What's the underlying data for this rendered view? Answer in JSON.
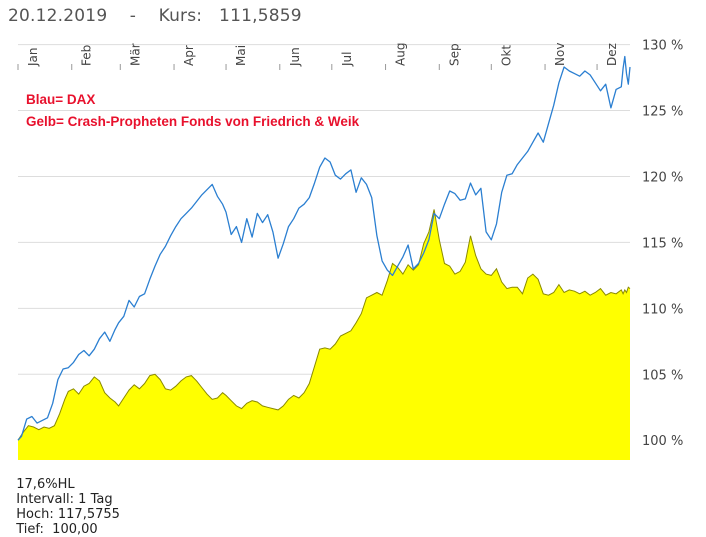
{
  "header": {
    "date": "20.12.2019",
    "separator": "-",
    "price_label": "Kurs:",
    "price_value": "111,5859"
  },
  "annotations": {
    "line1": "Blau= DAX",
    "line2": "Gelb= Crash-Propheten Fonds von Friedrich & Weik",
    "color": "#e8112d"
  },
  "footer": {
    "range": "17,6%HL",
    "interval": "Intervall: 1 Tag",
    "high": "Hoch: 117,5755",
    "low": "Tief:  100,00"
  },
  "colors": {
    "dax_line": "#2b7fd1",
    "fund_fill": "#ffff00",
    "fund_line": "#8a8a00",
    "grid": "#dddddd",
    "tick_text": "#444444"
  },
  "chart_data": {
    "type": "line",
    "x_axis": {
      "labels": [
        "Jan",
        "Feb",
        "Mär",
        "Apr",
        "Mai",
        "Jun",
        "Jul",
        "Aug",
        "Sep",
        "Okt",
        "Nov",
        "Dez"
      ],
      "range": [
        "2019-01-01",
        "2019-12-20"
      ]
    },
    "y_axis": {
      "ticks": [
        100,
        105,
        110,
        115,
        120,
        125,
        130
      ],
      "tick_labels": [
        "100 %",
        "105 %",
        "110 %",
        "115 %",
        "120 %",
        "125 %",
        "130 %"
      ],
      "ylim": [
        98.5,
        130.5
      ]
    },
    "grid": true,
    "series": [
      {
        "name": "DAX",
        "style": "line",
        "points": [
          [
            1,
            100.0
          ],
          [
            3,
            100.3
          ],
          [
            6,
            101.6
          ],
          [
            9,
            101.8
          ],
          [
            12,
            101.3
          ],
          [
            15,
            101.5
          ],
          [
            18,
            101.7
          ],
          [
            21,
            102.8
          ],
          [
            24,
            104.6
          ],
          [
            27,
            105.4
          ],
          [
            30,
            105.5
          ],
          [
            33,
            105.9
          ],
          [
            36,
            106.5
          ],
          [
            39,
            106.8
          ],
          [
            42,
            106.4
          ],
          [
            45,
            106.9
          ],
          [
            48,
            107.7
          ],
          [
            51,
            108.2
          ],
          [
            54,
            107.5
          ],
          [
            57,
            108.4
          ],
          [
            59,
            108.9
          ],
          [
            62,
            109.4
          ],
          [
            65,
            110.6
          ],
          [
            68,
            110.1
          ],
          [
            71,
            110.9
          ],
          [
            74,
            111.1
          ],
          [
            77,
            112.2
          ],
          [
            80,
            113.2
          ],
          [
            83,
            114.1
          ],
          [
            86,
            114.7
          ],
          [
            89,
            115.5
          ],
          [
            92,
            116.2
          ],
          [
            95,
            116.8
          ],
          [
            98,
            117.2
          ],
          [
            101,
            117.6
          ],
          [
            104,
            118.1
          ],
          [
            107,
            118.6
          ],
          [
            110,
            119.0
          ],
          [
            113,
            119.4
          ],
          [
            116,
            118.5
          ],
          [
            119,
            117.9
          ],
          [
            121,
            117.3
          ],
          [
            124,
            115.6
          ],
          [
            127,
            116.2
          ],
          [
            130,
            115.0
          ],
          [
            133,
            116.8
          ],
          [
            136,
            115.4
          ],
          [
            139,
            117.2
          ],
          [
            142,
            116.5
          ],
          [
            145,
            117.1
          ],
          [
            148,
            115.8
          ],
          [
            151,
            113.8
          ],
          [
            154,
            114.9
          ],
          [
            157,
            116.2
          ],
          [
            160,
            116.8
          ],
          [
            163,
            117.6
          ],
          [
            166,
            117.9
          ],
          [
            169,
            118.4
          ],
          [
            172,
            119.5
          ],
          [
            175,
            120.7
          ],
          [
            178,
            121.4
          ],
          [
            181,
            121.1
          ],
          [
            184,
            120.1
          ],
          [
            187,
            119.8
          ],
          [
            190,
            120.2
          ],
          [
            193,
            120.5
          ],
          [
            196,
            118.8
          ],
          [
            199,
            119.9
          ],
          [
            202,
            119.4
          ],
          [
            205,
            118.4
          ],
          [
            208,
            115.5
          ],
          [
            211,
            113.6
          ],
          [
            214,
            112.9
          ],
          [
            217,
            112.5
          ],
          [
            220,
            113.2
          ],
          [
            223,
            113.9
          ],
          [
            226,
            114.8
          ],
          [
            229,
            113.0
          ],
          [
            232,
            113.4
          ],
          [
            235,
            114.2
          ],
          [
            238,
            115.2
          ],
          [
            241,
            117.2
          ],
          [
            244,
            116.8
          ],
          [
            247,
            117.9
          ],
          [
            250,
            118.9
          ],
          [
            253,
            118.7
          ],
          [
            256,
            118.2
          ],
          [
            259,
            118.3
          ],
          [
            262,
            119.5
          ],
          [
            265,
            118.6
          ],
          [
            268,
            119.1
          ],
          [
            271,
            115.8
          ],
          [
            274,
            115.2
          ],
          [
            277,
            116.4
          ],
          [
            280,
            118.8
          ],
          [
            283,
            120.1
          ],
          [
            286,
            120.2
          ],
          [
            289,
            120.9
          ],
          [
            292,
            121.4
          ],
          [
            295,
            121.9
          ],
          [
            298,
            122.6
          ],
          [
            301,
            123.3
          ],
          [
            304,
            122.6
          ],
          [
            307,
            124.0
          ],
          [
            310,
            125.4
          ],
          [
            313,
            127.1
          ],
          [
            316,
            128.3
          ],
          [
            319,
            128.0
          ],
          [
            322,
            127.8
          ],
          [
            325,
            127.6
          ],
          [
            328,
            128.0
          ],
          [
            331,
            127.7
          ],
          [
            334,
            127.1
          ],
          [
            337,
            126.5
          ],
          [
            340,
            127.0
          ],
          [
            343,
            125.2
          ],
          [
            346,
            126.6
          ],
          [
            349,
            126.8
          ],
          [
            350,
            128.2
          ],
          [
            351,
            129.1
          ],
          [
            352,
            127.8
          ],
          [
            353,
            127.0
          ],
          [
            354,
            128.3
          ]
        ]
      },
      {
        "name": "Crash-Propheten Fonds von Friedrich & Weik",
        "style": "area",
        "points": [
          [
            1,
            100.0
          ],
          [
            4,
            100.6
          ],
          [
            7,
            101.1
          ],
          [
            10,
            101.0
          ],
          [
            13,
            100.8
          ],
          [
            16,
            101.0
          ],
          [
            19,
            100.9
          ],
          [
            22,
            101.1
          ],
          [
            25,
            102.0
          ],
          [
            28,
            103.1
          ],
          [
            30,
            103.7
          ],
          [
            33,
            103.9
          ],
          [
            36,
            103.5
          ],
          [
            39,
            104.1
          ],
          [
            42,
            104.3
          ],
          [
            45,
            104.8
          ],
          [
            48,
            104.5
          ],
          [
            51,
            103.6
          ],
          [
            54,
            103.2
          ],
          [
            57,
            102.9
          ],
          [
            59,
            102.6
          ],
          [
            62,
            103.2
          ],
          [
            65,
            103.8
          ],
          [
            68,
            104.2
          ],
          [
            71,
            103.9
          ],
          [
            74,
            104.3
          ],
          [
            77,
            104.9
          ],
          [
            80,
            105.0
          ],
          [
            83,
            104.6
          ],
          [
            86,
            103.9
          ],
          [
            89,
            103.8
          ],
          [
            92,
            104.1
          ],
          [
            95,
            104.5
          ],
          [
            98,
            104.8
          ],
          [
            101,
            104.9
          ],
          [
            104,
            104.5
          ],
          [
            107,
            104.0
          ],
          [
            110,
            103.5
          ],
          [
            113,
            103.1
          ],
          [
            116,
            103.2
          ],
          [
            119,
            103.6
          ],
          [
            121,
            103.4
          ],
          [
            124,
            103.0
          ],
          [
            127,
            102.6
          ],
          [
            130,
            102.4
          ],
          [
            133,
            102.8
          ],
          [
            136,
            103.0
          ],
          [
            139,
            102.9
          ],
          [
            142,
            102.6
          ],
          [
            145,
            102.5
          ],
          [
            148,
            102.4
          ],
          [
            151,
            102.3
          ],
          [
            154,
            102.6
          ],
          [
            157,
            103.1
          ],
          [
            160,
            103.4
          ],
          [
            163,
            103.2
          ],
          [
            166,
            103.6
          ],
          [
            169,
            104.3
          ],
          [
            172,
            105.6
          ],
          [
            175,
            106.9
          ],
          [
            178,
            107.0
          ],
          [
            181,
            106.9
          ],
          [
            184,
            107.3
          ],
          [
            187,
            107.9
          ],
          [
            190,
            108.1
          ],
          [
            193,
            108.3
          ],
          [
            196,
            108.9
          ],
          [
            199,
            109.6
          ],
          [
            202,
            110.8
          ],
          [
            205,
            111.0
          ],
          [
            208,
            111.2
          ],
          [
            211,
            111.0
          ],
          [
            214,
            112.1
          ],
          [
            217,
            113.4
          ],
          [
            220,
            113.1
          ],
          [
            223,
            112.6
          ],
          [
            226,
            113.3
          ],
          [
            229,
            112.9
          ],
          [
            232,
            113.3
          ],
          [
            235,
            114.9
          ],
          [
            238,
            115.8
          ],
          [
            241,
            117.5
          ],
          [
            244,
            115.2
          ],
          [
            247,
            113.4
          ],
          [
            250,
            113.2
          ],
          [
            253,
            112.6
          ],
          [
            256,
            112.8
          ],
          [
            259,
            113.5
          ],
          [
            262,
            115.5
          ],
          [
            265,
            114.0
          ],
          [
            268,
            113.0
          ],
          [
            271,
            112.6
          ],
          [
            274,
            112.5
          ],
          [
            277,
            113.0
          ],
          [
            280,
            112.0
          ],
          [
            283,
            111.5
          ],
          [
            286,
            111.6
          ],
          [
            289,
            111.6
          ],
          [
            292,
            111.1
          ],
          [
            295,
            112.3
          ],
          [
            298,
            112.6
          ],
          [
            301,
            112.2
          ],
          [
            304,
            111.1
          ],
          [
            307,
            111.0
          ],
          [
            310,
            111.2
          ],
          [
            313,
            111.8
          ],
          [
            316,
            111.2
          ],
          [
            319,
            111.4
          ],
          [
            322,
            111.3
          ],
          [
            325,
            111.1
          ],
          [
            328,
            111.3
          ],
          [
            331,
            111.0
          ],
          [
            334,
            111.2
          ],
          [
            337,
            111.5
          ],
          [
            340,
            111.0
          ],
          [
            343,
            111.2
          ],
          [
            346,
            111.1
          ],
          [
            349,
            111.4
          ],
          [
            350,
            111.1
          ],
          [
            351,
            111.4
          ],
          [
            352,
            111.2
          ],
          [
            353,
            111.6
          ],
          [
            354,
            111.5
          ]
        ]
      }
    ]
  }
}
